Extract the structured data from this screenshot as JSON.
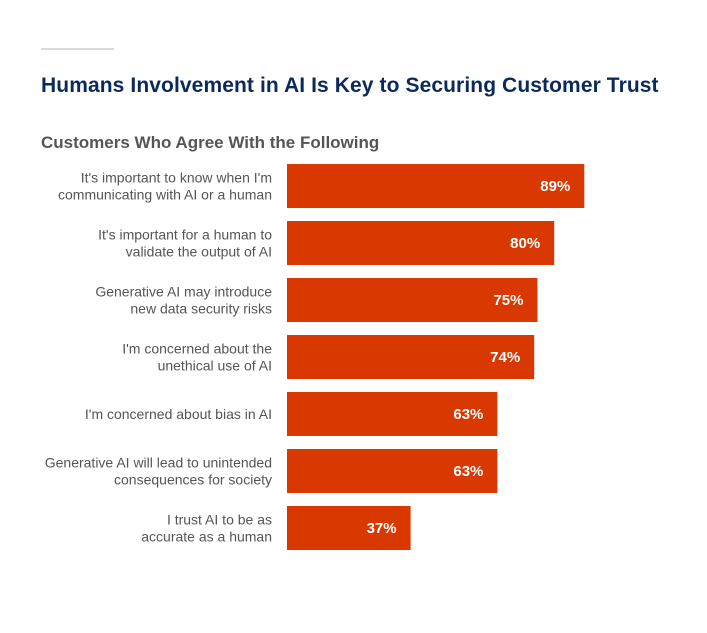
{
  "title": "Humans Involvement in AI Is Key to Securing Customer Trust",
  "subtitle": "Customers Who Agree With the Following",
  "colors": {
    "bar": "#d93800",
    "title": "#0b2a5b",
    "label": "#555555",
    "value": "#ffffff"
  },
  "chart_data": {
    "type": "bar",
    "orientation": "horizontal",
    "title": "Humans Involvement in AI Is Key to Securing Customer Trust",
    "subtitle": "Customers Who Agree With the Following",
    "categories": [
      [
        "It's important to know when I'm",
        "communicating with AI or a human"
      ],
      [
        "It's important for a human to",
        "validate the output of AI"
      ],
      [
        "Generative AI may introduce",
        "new data security risks"
      ],
      [
        "I'm concerned about the",
        "unethical use of AI"
      ],
      [
        "I'm concerned about bias in AI"
      ],
      [
        "Generative AI will lead to unintended",
        "consequences for society"
      ],
      [
        "I trust AI to be as",
        "accurate as a human"
      ]
    ],
    "values": [
      89,
      80,
      75,
      74,
      63,
      63,
      37
    ],
    "value_labels": [
      "89%",
      "80%",
      "75%",
      "74%",
      "63%",
      "63%",
      "37%"
    ],
    "unit": "%",
    "xlim": [
      0,
      100
    ],
    "grid": false,
    "legend": "none"
  }
}
